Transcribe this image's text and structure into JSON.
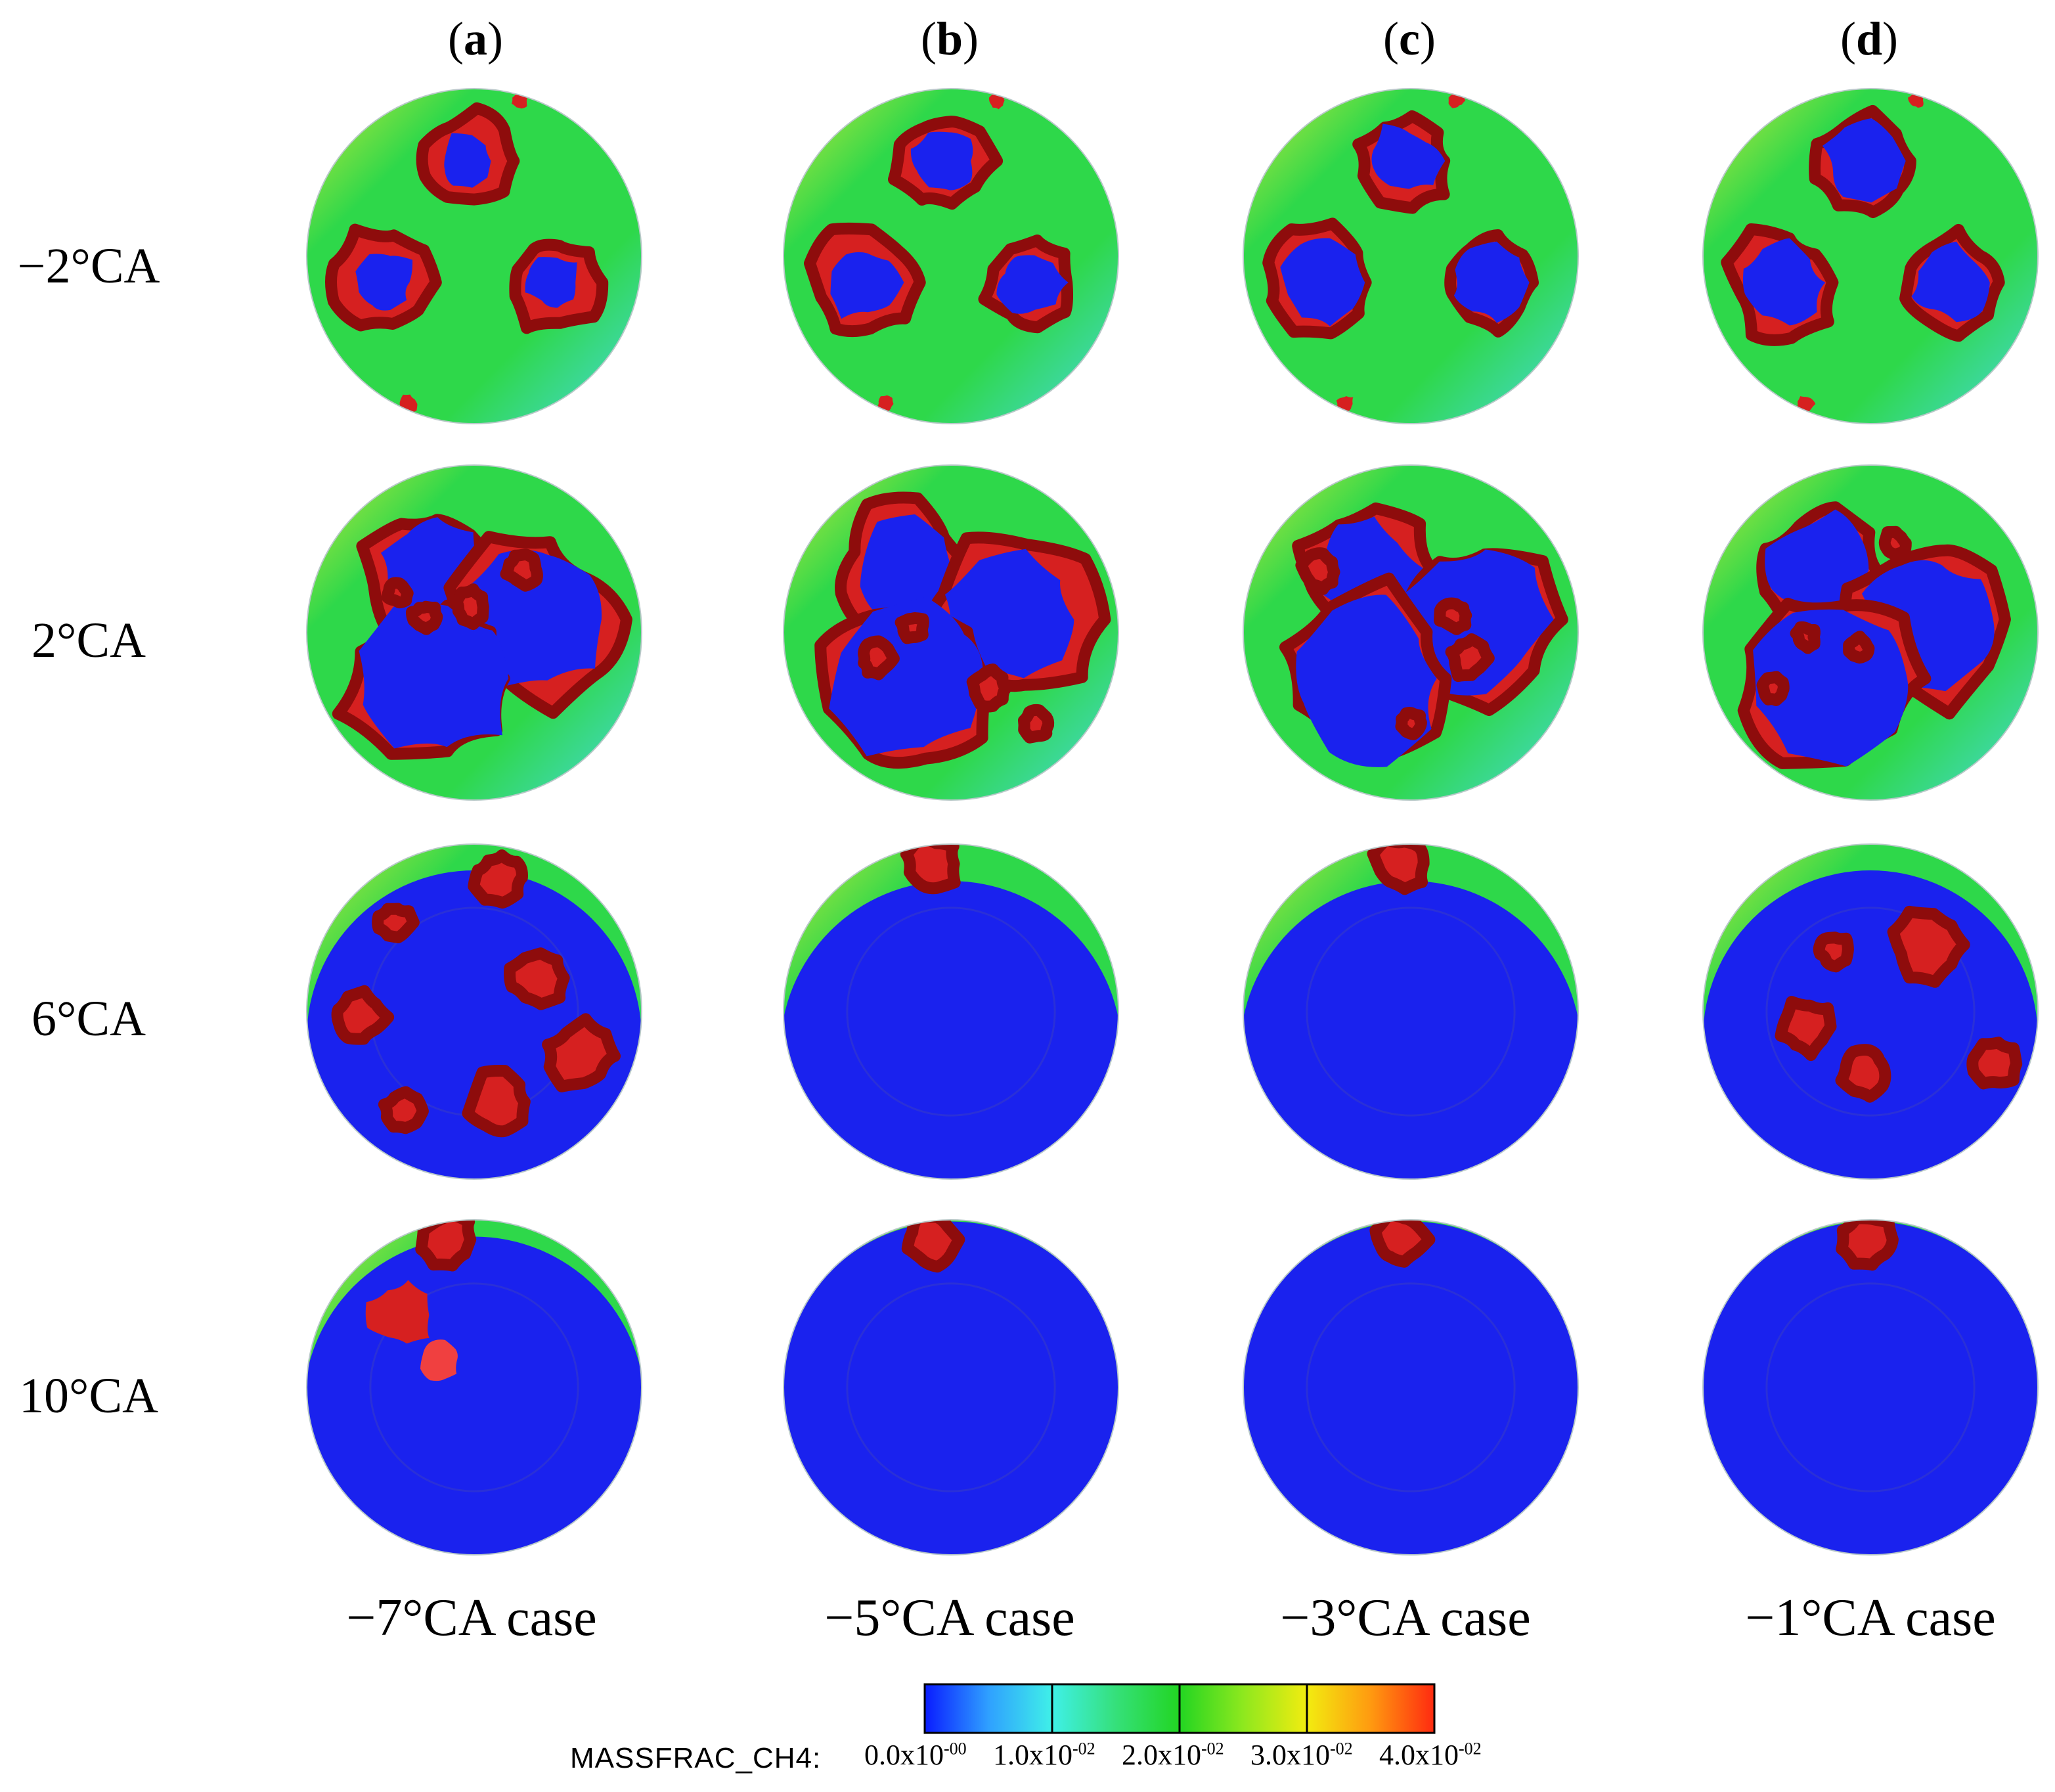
{
  "column_labels": [
    {
      "open": "(",
      "letter": "a",
      "close": ")"
    },
    {
      "open": "(",
      "letter": "b",
      "close": ")"
    },
    {
      "open": "(",
      "letter": "c",
      "close": ")"
    },
    {
      "open": "(",
      "letter": "d",
      "close": ")"
    }
  ],
  "row_labels": [
    "−2°CA",
    "2°CA",
    "6°CA",
    "10°CA"
  ],
  "case_labels": [
    "−7°CA case",
    "−5°CA case",
    "−3°CA case",
    "−1°CA case"
  ],
  "colorbar": {
    "variable": "MASSFRAC_CH4:",
    "min": 0.0,
    "max": 0.04,
    "ticks": [
      {
        "mantissa": "0.0x10",
        "exponent": "-00"
      },
      {
        "mantissa": "1.0x10",
        "exponent": "-02"
      },
      {
        "mantissa": "2.0x10",
        "exponent": "-02"
      },
      {
        "mantissa": "3.0x10",
        "exponent": "-02"
      },
      {
        "mantissa": "4.0x10",
        "exponent": "-02"
      }
    ],
    "colors": [
      "#0a1cff",
      "#2fa0ff",
      "#3ff0e8",
      "#35e07a",
      "#22d522",
      "#8ee81e",
      "#f2ec10",
      "#ff9a10",
      "#ff2a10"
    ]
  },
  "palette": {
    "burned": "#1a22ee",
    "unburned": "#2ed84a",
    "flame": "#d62020",
    "flame_dark": "#8e0c0c",
    "near_wall": "#49d8e0",
    "warm": "#c8e83a"
  },
  "blue_fraction_grid": [
    [
      0.18,
      0.22,
      0.24,
      0.26
    ],
    [
      0.55,
      0.58,
      0.55,
      0.58
    ],
    [
      0.82,
      0.92,
      0.92,
      0.9
    ],
    [
      0.96,
      0.99,
      0.99,
      0.99
    ]
  ]
}
